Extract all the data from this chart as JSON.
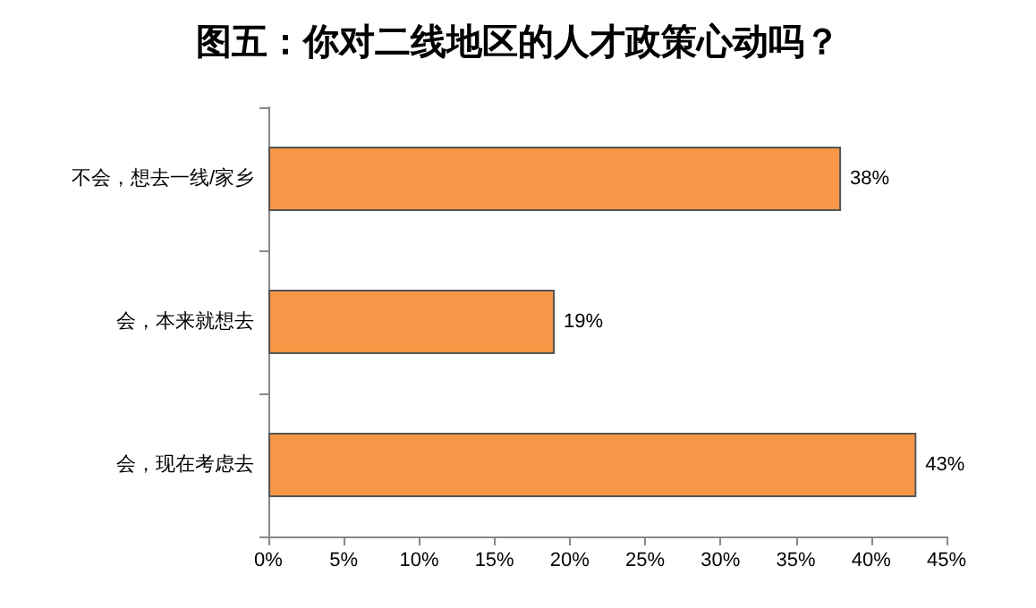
{
  "chart_data": {
    "type": "bar",
    "orientation": "horizontal",
    "title": "图五：你对二线地区的人才政策心动吗？",
    "categories": [
      "不会，想去一线/家乡",
      "会，本来就想去",
      "会，现在考虑去"
    ],
    "values": [
      38,
      19,
      43
    ],
    "value_labels": [
      "38%",
      "19%",
      "43%"
    ],
    "color": "#f79646",
    "xlim": [
      0,
      45
    ],
    "xticks": [
      {
        "value": 0,
        "label": "0%"
      },
      {
        "value": 5,
        "label": "5%"
      },
      {
        "value": 10,
        "label": "10%"
      },
      {
        "value": 15,
        "label": "15%"
      },
      {
        "value": 20,
        "label": "20%"
      },
      {
        "value": 25,
        "label": "25%"
      },
      {
        "value": 30,
        "label": "30%"
      },
      {
        "value": 35,
        "label": "35%"
      },
      {
        "value": 40,
        "label": "40%"
      },
      {
        "value": 45,
        "label": "45%"
      }
    ],
    "grid": false
  }
}
